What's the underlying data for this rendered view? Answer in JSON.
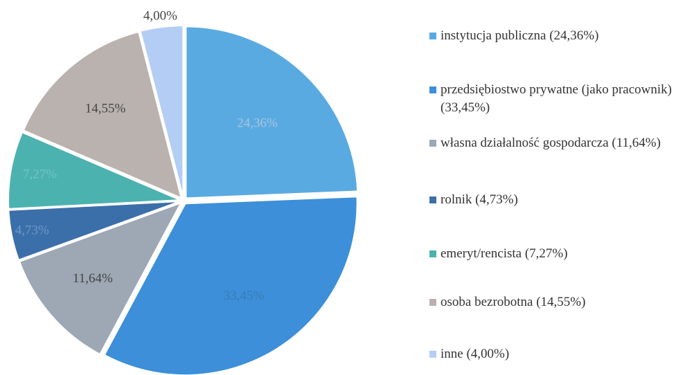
{
  "chart_data": {
    "type": "pie",
    "categories": [
      "instytucja publiczna (24,36%)",
      "przedsiębiostwo prywatne (jako pracownik) (33,45%)",
      "własna działalność gospodarcza (11,64%)",
      "rolnik (4,73%)",
      "emeryt/rencista (7,27%)",
      "osoba bezrobotna (14,55%)",
      "inne (4,00%)"
    ],
    "values": [
      24.36,
      33.45,
      11.64,
      4.73,
      7.27,
      14.55,
      4.0
    ],
    "value_labels": [
      "24,36%",
      "33,45%",
      "11,64%",
      "4,73%",
      "7,27%",
      "14,55%",
      "4,00%"
    ],
    "colors": [
      "#5aaae2",
      "#3c8fd8",
      "#9ea7b4",
      "#3b6faa",
      "#4cb2b0",
      "#bab2ae",
      "#b4cdf4"
    ],
    "legend": "right"
  }
}
